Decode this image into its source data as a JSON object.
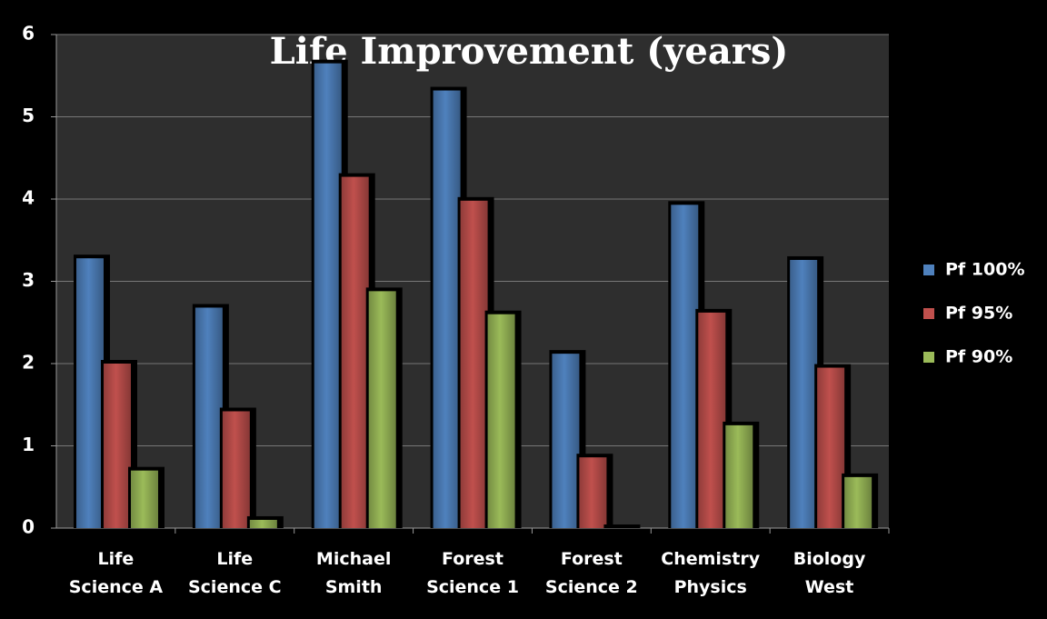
{
  "chart_data": {
    "type": "bar",
    "title": "Life Improvement (years)",
    "categories": [
      "Life Science A",
      "Life Science C",
      "Michael Smith",
      "Forest Science 1",
      "Forest Science 2",
      "Chemistry Physics",
      "Biology West"
    ],
    "series": [
      {
        "name": "Pf 100%",
        "color": "#4f81bd",
        "values": [
          3.28,
          2.68,
          5.65,
          5.32,
          2.12,
          3.93,
          3.26
        ]
      },
      {
        "name": "Pf 95%",
        "color": "#c0504d",
        "values": [
          2.0,
          1.42,
          4.27,
          3.98,
          0.86,
          2.62,
          1.95
        ]
      },
      {
        "name": "Pf 90%",
        "color": "#9bbb59",
        "values": [
          0.7,
          0.1,
          2.88,
          2.6,
          0,
          1.25,
          0.62
        ]
      }
    ],
    "ylim": [
      0,
      6
    ],
    "yticks": [
      0,
      1,
      2,
      3,
      4,
      5,
      6
    ],
    "grid": true,
    "legend": "right"
  }
}
